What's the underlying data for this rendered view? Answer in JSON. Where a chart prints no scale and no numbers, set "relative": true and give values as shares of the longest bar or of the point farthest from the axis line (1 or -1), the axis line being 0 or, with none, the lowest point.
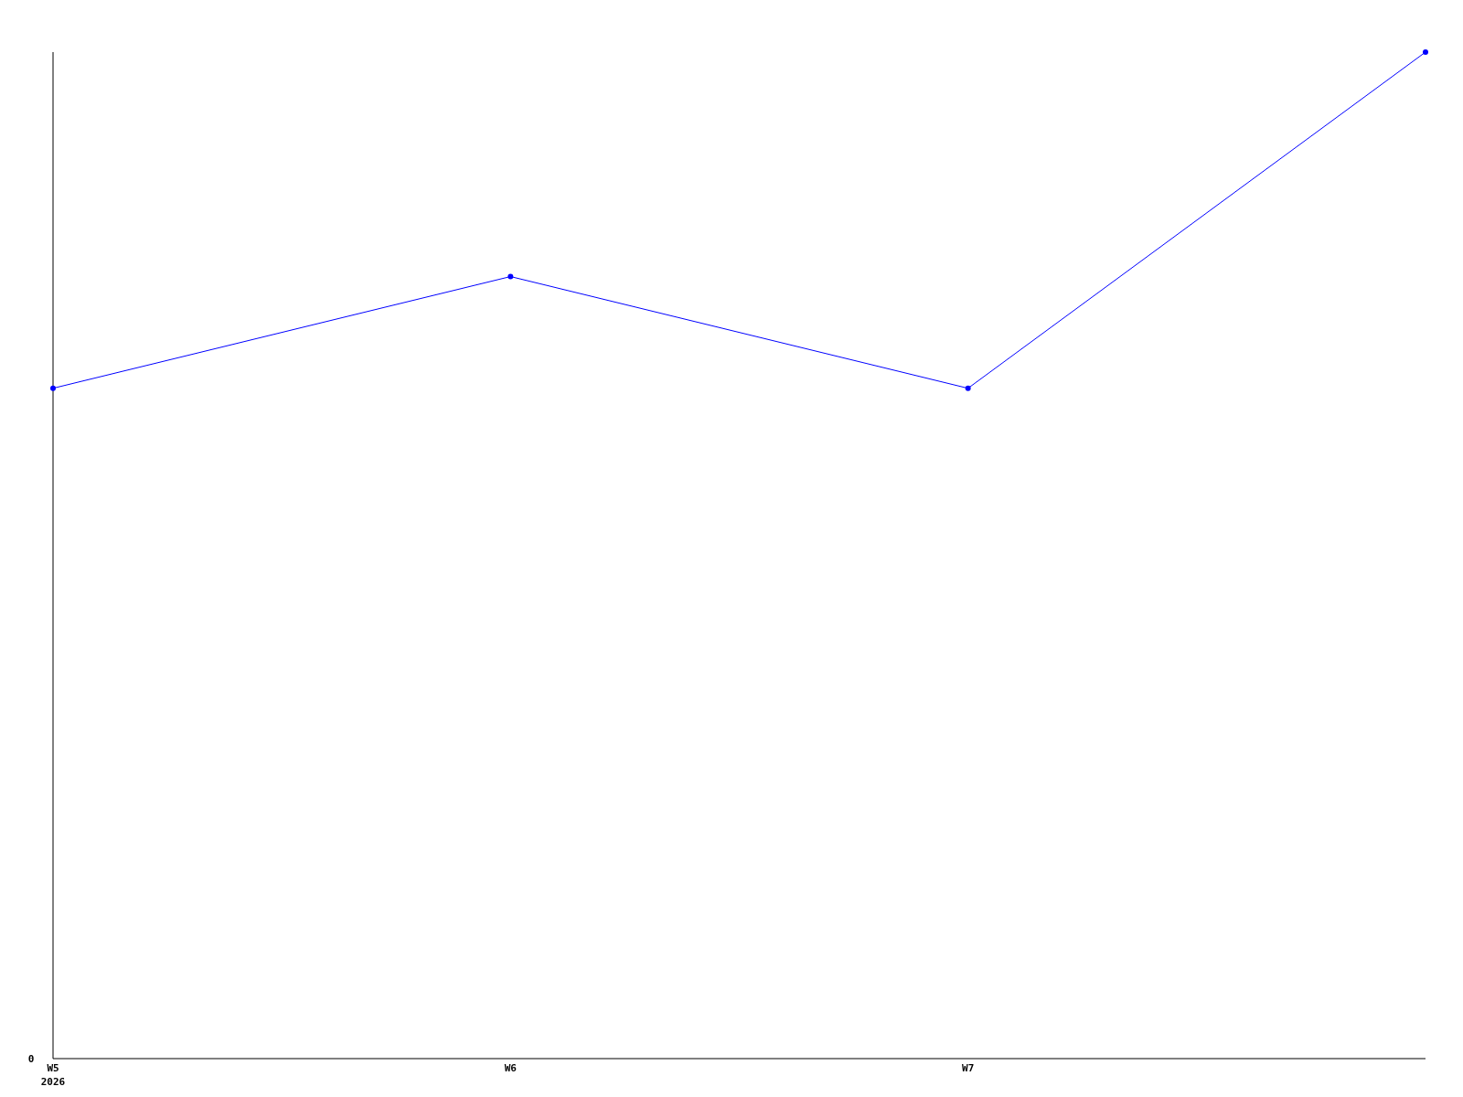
{
  "chart_data": {
    "type": "line",
    "relative": true,
    "categories": [
      "W5\n2026",
      "W6",
      "W7",
      null
    ],
    "series": [
      {
        "color": "#0000ff",
        "values": [
          0.666,
          0.777,
          0.666,
          1
        ]
      }
    ],
    "marker": "circle",
    "annotations": [
      "0"
    ]
  }
}
